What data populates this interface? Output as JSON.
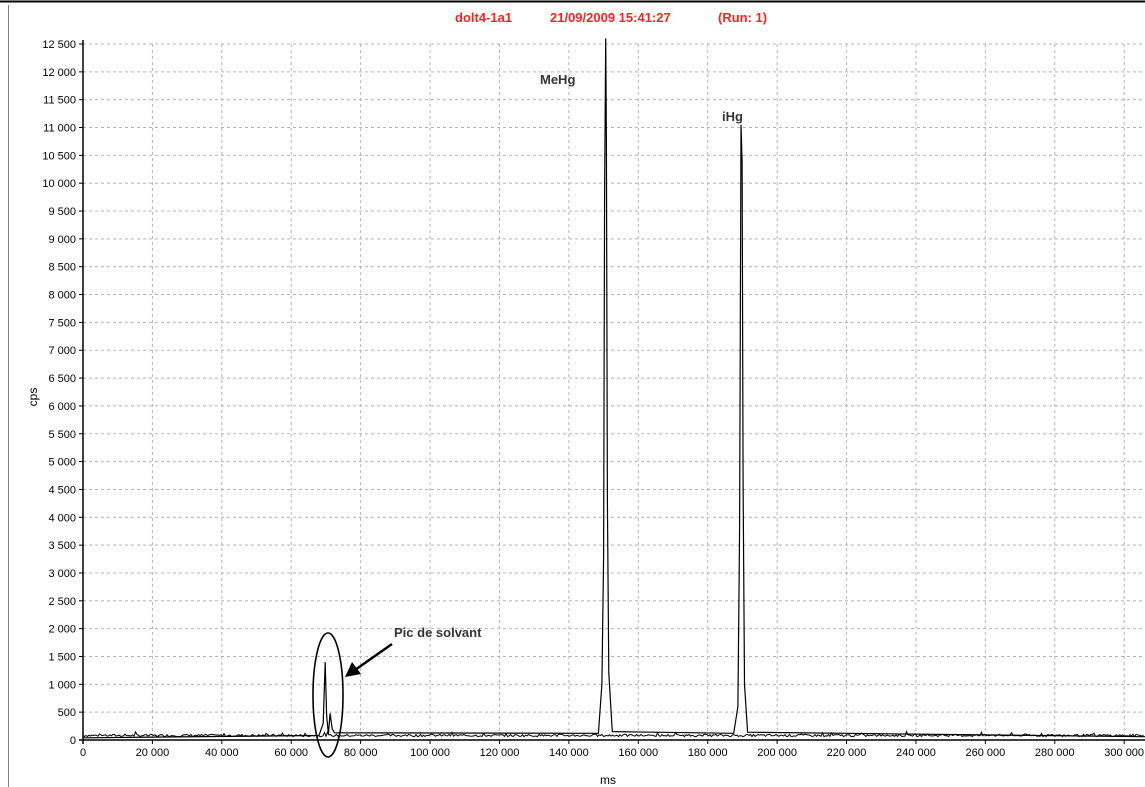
{
  "title": {
    "sample": "dolt4-1a1",
    "datetime": "21/09/2009 15:41:27",
    "run": "(Run: 1)"
  },
  "colors": {
    "title": "#ff2020",
    "trace": "#000000",
    "grid": "#b4b4b4",
    "axis": "#000000"
  },
  "chart_data": {
    "type": "line",
    "xlabel": "ms",
    "ylabel": "cps",
    "xlim": [
      0,
      306000
    ],
    "ylim": [
      0,
      12500
    ],
    "x_ticks": [
      0,
      20000,
      40000,
      60000,
      80000,
      100000,
      120000,
      140000,
      160000,
      180000,
      200000,
      220000,
      240000,
      260000,
      280000,
      300000
    ],
    "x_tick_labels": [
      "0",
      "20 000",
      "40 000",
      "60 000",
      "80 000",
      "100 000",
      "120 000",
      "140 000",
      "160 000",
      "180 000",
      "200 000",
      "220 000",
      "240 000",
      "260 000",
      "280 000",
      "300 000"
    ],
    "y_ticks": [
      0,
      500,
      1000,
      1500,
      2000,
      2500,
      3000,
      3500,
      4000,
      4500,
      5000,
      5500,
      6000,
      6500,
      7000,
      7500,
      8000,
      8500,
      9000,
      9500,
      10000,
      10500,
      11000,
      11500,
      12000,
      12500
    ],
    "y_tick_labels": [
      "0",
      "500",
      "1 000",
      "1 500",
      "2 000",
      "2 500",
      "3 000",
      "3 500",
      "4 000",
      "4 500",
      "5 000",
      "5 500",
      "6 000",
      "6 500",
      "7 000",
      "7 500",
      "8 000",
      "8 500",
      "9 000",
      "9 500",
      "10 000",
      "10 500",
      "11 000",
      "11 500",
      "12 000",
      "12 500"
    ],
    "grid": true,
    "baseline_level": 60,
    "series": [
      {
        "points": [
          [
            0,
            40
          ],
          [
            68000,
            80
          ],
          [
            69200,
            300
          ],
          [
            69800,
            1400
          ],
          [
            70200,
            450
          ],
          [
            70700,
            100
          ],
          [
            71200,
            480
          ],
          [
            71800,
            200
          ],
          [
            72500,
            130
          ],
          [
            148500,
            120
          ],
          [
            149500,
            1000
          ],
          [
            150000,
            3300
          ],
          [
            150300,
            9800
          ],
          [
            150600,
            12600
          ],
          [
            150800,
            10700
          ],
          [
            151100,
            4300
          ],
          [
            151500,
            1200
          ],
          [
            152500,
            150
          ],
          [
            187500,
            120
          ],
          [
            188700,
            600
          ],
          [
            189200,
            3800
          ],
          [
            189600,
            11050
          ],
          [
            189900,
            10400
          ],
          [
            190200,
            4600
          ],
          [
            190600,
            1000
          ],
          [
            191500,
            140
          ],
          [
            306000,
            60
          ]
        ]
      }
    ],
    "annotations": [
      {
        "text": "MeHg",
        "x": 150600,
        "y": 12600
      },
      {
        "text": "iHg",
        "x": 189600,
        "y": 11050
      },
      {
        "text": "Pic de solvant",
        "x": 70000,
        "y": 1400
      }
    ]
  }
}
